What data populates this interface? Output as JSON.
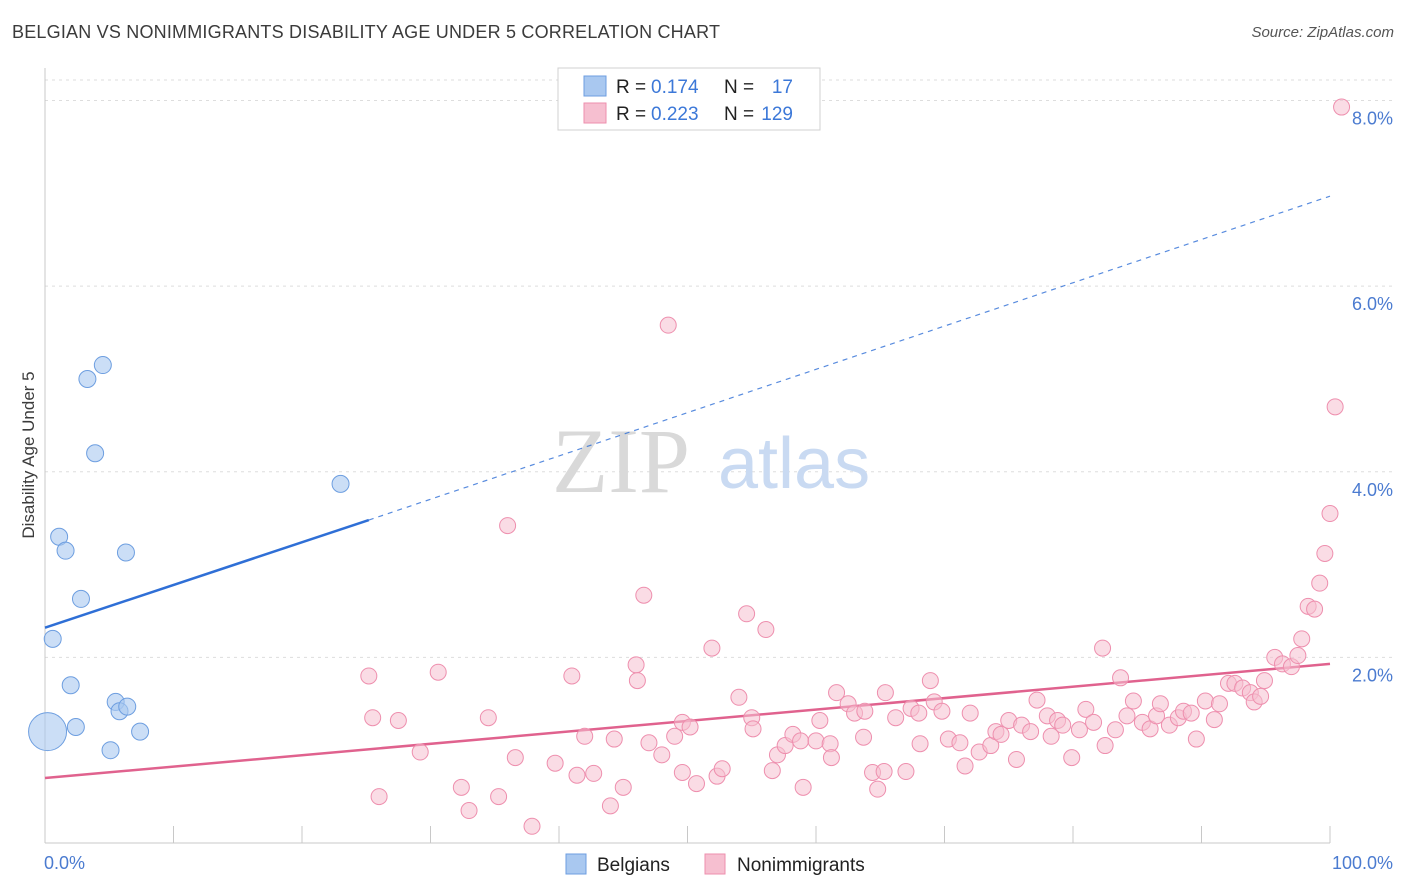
{
  "title": "BELGIAN VS NONIMMIGRANTS DISABILITY AGE UNDER 5 CORRELATION CHART",
  "source": "Source: ZipAtlas.com",
  "watermark": {
    "zip": "ZIP",
    "atlas": "atlas"
  },
  "colors": {
    "belgian_fill": "#a9c8f0",
    "belgian_stroke": "#6d9ee0",
    "belgian_line": "#2f6fd6",
    "nonimm_fill": "#f6bfd0",
    "nonimm_stroke": "#ee8fae",
    "nonimm_line": "#e0628e",
    "tick_text": "#4b7bd0",
    "grid": "#dddddd"
  },
  "legend_top": {
    "rows": [
      {
        "r_label": "R =",
        "r_value": "0.174",
        "n_label": "N =",
        "n_value": "17"
      },
      {
        "r_label": "R =",
        "r_value": "0.223",
        "n_label": "N =",
        "n_value": "129"
      }
    ]
  },
  "legend_bottom": [
    "Belgians",
    "Nonimmigrants"
  ],
  "chart_data": {
    "type": "scatter",
    "xlabel": "",
    "ylabel": "Disability Age Under 5",
    "xlim": [
      0,
      100
    ],
    "ylim": [
      0,
      8.2
    ],
    "x_tick_labels": [
      {
        "value": 0,
        "label": "0.0%"
      },
      {
        "value": 100,
        "label": "100.0%"
      }
    ],
    "y_tick_labels": [
      {
        "value": 2,
        "label": "2.0%"
      },
      {
        "value": 4,
        "label": "4.0%"
      },
      {
        "value": 6,
        "label": "6.0%"
      },
      {
        "value": 8,
        "label": "8.0%"
      }
    ],
    "grid": "horizontal dashed",
    "series": [
      {
        "name": "Belgians",
        "points": [
          [
            0.6,
            2.2
          ],
          [
            1.1,
            3.3
          ],
          [
            1.6,
            3.15
          ],
          [
            2.0,
            1.7
          ],
          [
            2.4,
            1.25
          ],
          [
            2.8,
            2.63
          ],
          [
            3.3,
            5.0
          ],
          [
            3.9,
            4.2
          ],
          [
            4.5,
            5.15
          ],
          [
            5.1,
            1.0
          ],
          [
            5.5,
            1.52
          ],
          [
            5.8,
            1.42
          ],
          [
            6.4,
            1.47
          ],
          [
            6.3,
            3.13
          ],
          [
            7.4,
            1.2
          ],
          [
            23.0,
            3.87
          ],
          [
            0.2,
            1.2,
            "large"
          ]
        ],
        "trend": {
          "x0": 0,
          "y0": 2.32,
          "x1": 25.2,
          "y1": 3.48,
          "x_dash_end": 100,
          "y_dash_end": 6.97
        }
      },
      {
        "name": "Nonimmigrants",
        "points": [
          [
            25.2,
            1.8
          ],
          [
            25.5,
            1.35
          ],
          [
            26.0,
            0.5
          ],
          [
            27.5,
            1.32
          ],
          [
            29.2,
            0.98
          ],
          [
            30.6,
            1.84
          ],
          [
            32.4,
            0.6
          ],
          [
            33.0,
            0.35
          ],
          [
            34.5,
            1.35
          ],
          [
            35.3,
            0.5
          ],
          [
            36.0,
            3.42
          ],
          [
            36.6,
            0.92
          ],
          [
            37.9,
            0.18
          ],
          [
            39.7,
            0.86
          ],
          [
            41.0,
            1.8
          ],
          [
            41.4,
            0.73
          ],
          [
            42.0,
            1.15
          ],
          [
            42.7,
            0.75
          ],
          [
            44.0,
            0.4
          ],
          [
            44.3,
            1.12
          ],
          [
            45.0,
            0.6
          ],
          [
            46.0,
            1.92
          ],
          [
            46.1,
            1.75
          ],
          [
            46.6,
            2.67
          ],
          [
            47.0,
            1.08
          ],
          [
            48.0,
            0.95
          ],
          [
            48.5,
            5.58
          ],
          [
            49.0,
            1.15
          ],
          [
            49.6,
            1.3
          ],
          [
            49.6,
            0.76
          ],
          [
            50.2,
            1.25
          ],
          [
            50.7,
            0.64
          ],
          [
            51.9,
            2.1
          ],
          [
            52.3,
            0.72
          ],
          [
            52.7,
            0.8
          ],
          [
            54.0,
            1.57
          ],
          [
            54.6,
            2.47
          ],
          [
            55.0,
            1.35
          ],
          [
            55.1,
            1.23
          ],
          [
            56.1,
            2.3
          ],
          [
            56.6,
            0.78
          ],
          [
            57.0,
            0.95
          ],
          [
            57.6,
            1.05
          ],
          [
            58.2,
            1.17
          ],
          [
            58.8,
            1.1
          ],
          [
            59.0,
            0.6
          ],
          [
            60.0,
            1.1
          ],
          [
            60.3,
            1.32
          ],
          [
            61.1,
            1.07
          ],
          [
            61.2,
            0.92
          ],
          [
            61.6,
            1.62
          ],
          [
            62.5,
            1.5
          ],
          [
            63.0,
            1.4
          ],
          [
            63.7,
            1.14
          ],
          [
            63.8,
            1.42
          ],
          [
            64.4,
            0.76
          ],
          [
            64.8,
            0.58
          ],
          [
            65.3,
            0.77
          ],
          [
            65.4,
            1.62
          ],
          [
            66.2,
            1.35
          ],
          [
            67.0,
            0.77
          ],
          [
            67.4,
            1.45
          ],
          [
            68.0,
            1.4
          ],
          [
            68.1,
            1.07
          ],
          [
            68.9,
            1.75
          ],
          [
            69.2,
            1.52
          ],
          [
            69.8,
            1.42
          ],
          [
            70.3,
            1.12
          ],
          [
            71.2,
            1.08
          ],
          [
            71.6,
            0.83
          ],
          [
            72.0,
            1.4
          ],
          [
            72.7,
            0.98
          ],
          [
            73.6,
            1.05
          ],
          [
            74.0,
            1.2
          ],
          [
            74.4,
            1.17
          ],
          [
            75.0,
            1.32
          ],
          [
            75.6,
            0.9
          ],
          [
            76.0,
            1.27
          ],
          [
            76.7,
            1.2
          ],
          [
            77.2,
            1.54
          ],
          [
            78.0,
            1.37
          ],
          [
            78.3,
            1.15
          ],
          [
            78.8,
            1.32
          ],
          [
            79.2,
            1.27
          ],
          [
            79.9,
            0.92
          ],
          [
            80.5,
            1.22
          ],
          [
            81.0,
            1.44
          ],
          [
            81.6,
            1.3
          ],
          [
            82.3,
            2.1
          ],
          [
            82.5,
            1.05
          ],
          [
            83.3,
            1.22
          ],
          [
            83.7,
            1.78
          ],
          [
            84.2,
            1.37
          ],
          [
            84.7,
            1.53
          ],
          [
            85.4,
            1.3
          ],
          [
            86.0,
            1.23
          ],
          [
            86.5,
            1.37
          ],
          [
            86.8,
            1.5
          ],
          [
            87.5,
            1.27
          ],
          [
            88.2,
            1.35
          ],
          [
            88.6,
            1.42
          ],
          [
            89.2,
            1.4
          ],
          [
            89.6,
            1.12
          ],
          [
            90.3,
            1.53
          ],
          [
            91.0,
            1.33
          ],
          [
            91.4,
            1.5
          ],
          [
            92.1,
            1.72
          ],
          [
            92.6,
            1.72
          ],
          [
            93.2,
            1.67
          ],
          [
            93.8,
            1.62
          ],
          [
            94.1,
            1.52
          ],
          [
            94.6,
            1.58
          ],
          [
            94.9,
            1.75
          ],
          [
            95.7,
            2.0
          ],
          [
            96.3,
            1.93
          ],
          [
            97.0,
            1.9
          ],
          [
            97.5,
            2.02
          ],
          [
            97.8,
            2.2
          ],
          [
            98.3,
            2.55
          ],
          [
            98.8,
            2.52
          ],
          [
            99.2,
            2.8
          ],
          [
            99.6,
            3.12
          ],
          [
            100.0,
            3.55
          ],
          [
            100.4,
            4.7
          ],
          [
            100.9,
            7.93
          ]
        ],
        "trend": {
          "x0": 0,
          "y0": 0.7,
          "x1": 100,
          "y1": 1.93
        }
      }
    ]
  }
}
